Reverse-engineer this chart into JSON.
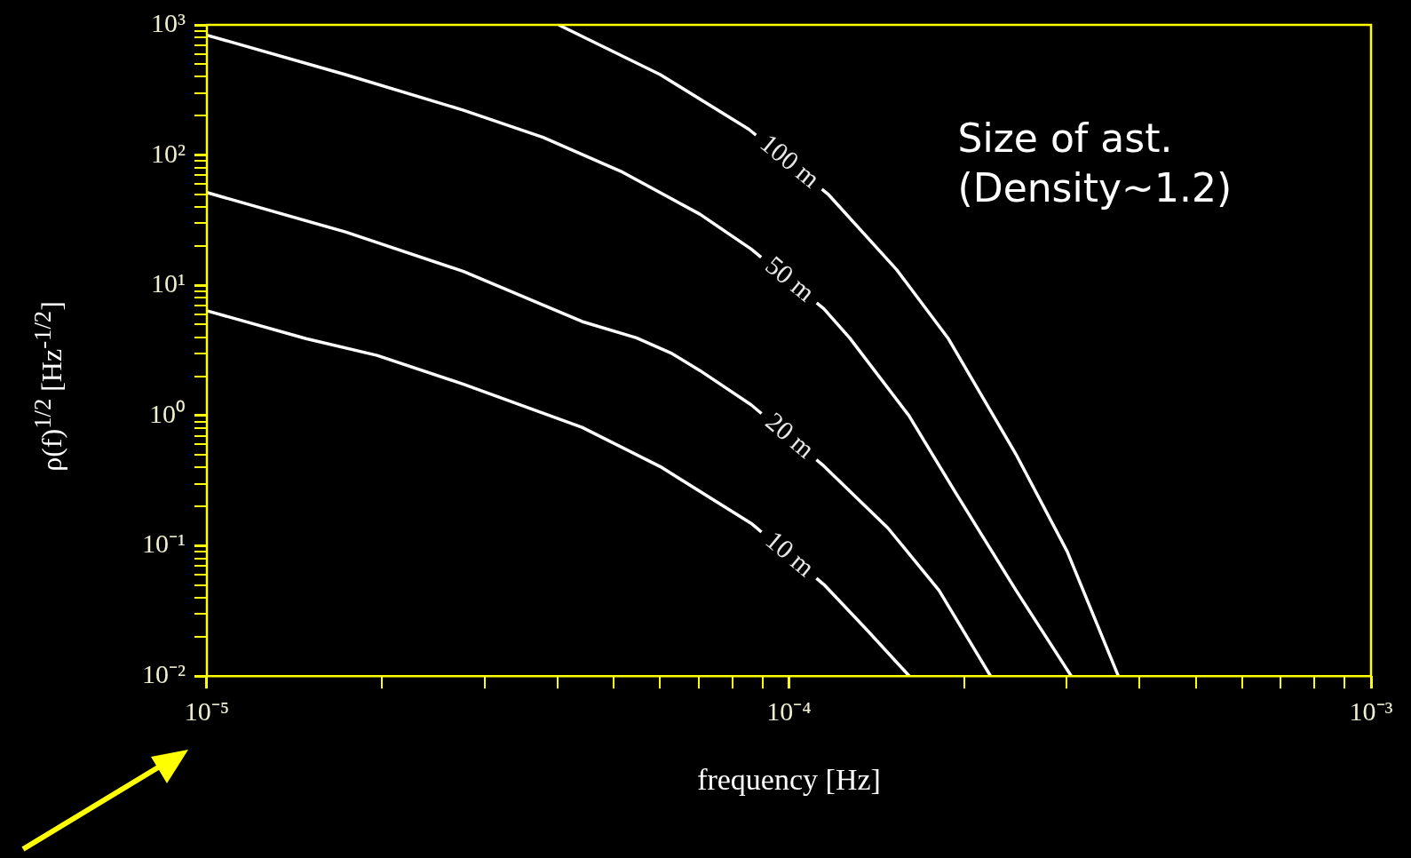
{
  "chart_data": {
    "type": "line",
    "xlabel": "frequency [Hz]",
    "ylabel": "ρ(f)$^{1/2}$ [Hz$^{-1/2}$]",
    "annotations": [
      "Size of ast.",
      "(Density~1.2)"
    ],
    "log": "xy",
    "grid": false,
    "legend": false,
    "marker": "none",
    "xlim": [
      1e-05,
      0.001
    ],
    "xticks": [
      {
        "value": 1e-05,
        "label": "10⁻⁵"
      },
      {
        "value": 2e-05,
        "label": null
      },
      {
        "value": 3e-05,
        "label": null
      },
      {
        "value": 4e-05,
        "label": null
      },
      {
        "value": 5e-05,
        "label": null
      },
      {
        "value": 6e-05,
        "label": null
      },
      {
        "value": 7e-05,
        "label": null
      },
      {
        "value": 8e-05,
        "label": null
      },
      {
        "value": 9e-05,
        "label": null
      },
      {
        "value": 0.0001,
        "label": "10⁻⁴"
      },
      {
        "value": 0.0002,
        "label": null
      },
      {
        "value": 0.0003,
        "label": null
      },
      {
        "value": 0.0004,
        "label": null
      },
      {
        "value": 0.0005,
        "label": null
      },
      {
        "value": 0.0006,
        "label": null
      },
      {
        "value": 0.0007,
        "label": null
      },
      {
        "value": 0.0008,
        "label": null
      },
      {
        "value": 0.0009,
        "label": null
      },
      {
        "value": 0.001,
        "label": "10⁻³"
      }
    ],
    "ylim": [
      0.01,
      1000
    ],
    "yticks": [
      {
        "value": 0.01,
        "label": "10⁻²"
      },
      {
        "value": 0.02,
        "label": null
      },
      {
        "value": 0.03,
        "label": null
      },
      {
        "value": 0.04,
        "label": null
      },
      {
        "value": 0.05,
        "label": null
      },
      {
        "value": 0.06,
        "label": null
      },
      {
        "value": 0.07,
        "label": null
      },
      {
        "value": 0.08,
        "label": null
      },
      {
        "value": 0.09,
        "label": null
      },
      {
        "value": 0.1,
        "label": "10⁻¹"
      },
      {
        "value": 0.2,
        "label": null
      },
      {
        "value": 0.3,
        "label": null
      },
      {
        "value": 0.4,
        "label": null
      },
      {
        "value": 0.5,
        "label": null
      },
      {
        "value": 0.6,
        "label": null
      },
      {
        "value": 0.7,
        "label": null
      },
      {
        "value": 0.8,
        "label": null
      },
      {
        "value": 0.9,
        "label": null
      },
      {
        "value": 1,
        "label": "10⁰"
      },
      {
        "value": 2,
        "label": null
      },
      {
        "value": 3,
        "label": null
      },
      {
        "value": 4,
        "label": null
      },
      {
        "value": 5,
        "label": null
      },
      {
        "value": 6,
        "label": null
      },
      {
        "value": 7,
        "label": null
      },
      {
        "value": 8,
        "label": null
      },
      {
        "value": 9,
        "label": null
      },
      {
        "value": 10,
        "label": "10¹"
      },
      {
        "value": 20,
        "label": null
      },
      {
        "value": 30,
        "label": null
      },
      {
        "value": 40,
        "label": null
      },
      {
        "value": 50,
        "label": null
      },
      {
        "value": 60,
        "label": null
      },
      {
        "value": 70,
        "label": null
      },
      {
        "value": 80,
        "label": null
      },
      {
        "value": 90,
        "label": null
      },
      {
        "value": 100,
        "label": "10²"
      },
      {
        "value": 200,
        "label": null
      },
      {
        "value": 300,
        "label": null
      },
      {
        "value": 400,
        "label": null
      },
      {
        "value": 500,
        "label": null
      },
      {
        "value": 600,
        "label": null
      },
      {
        "value": 700,
        "label": null
      },
      {
        "value": 800,
        "label": null
      },
      {
        "value": 900,
        "label": null
      },
      {
        "value": 1000,
        "label": "10³"
      }
    ],
    "series": [
      {
        "name": "100 m",
        "color": "#ffffff",
        "x": [
          4.02e-05,
          6.01e-05,
          8.53e-05,
          0.0001167,
          0.0001531,
          0.0001875,
          0.0002455,
          0.0003006,
          0.000368
        ],
        "values": [
          1000,
          415,
          158,
          50.2,
          13.2,
          3.95,
          0.504,
          0.0906,
          0.01
        ]
      },
      {
        "name": "50 m",
        "color": "#ffffff",
        "x": [
          1e-05,
          1.73e-05,
          2.76e-05,
          3.78e-05,
          5.14e-05,
          7.03e-05,
          8.61e-05,
          0.0001148,
          0.0001271,
          0.0001607,
          0.0001936,
          0.0002455,
          0.0003055
        ],
        "values": [
          834,
          415,
          221,
          137,
          75.2,
          35.2,
          19,
          6.62,
          3.95,
          1,
          0.253,
          0.0456,
          0.01
        ]
      },
      {
        "name": "20 m",
        "color": "#ffffff",
        "x": [
          1e-05,
          1.73e-05,
          2.76e-05,
          4.41e-05,
          5.47e-05,
          6.3e-05,
          7.03e-05,
          8.61e-05,
          0.0001148,
          0.0001479,
          0.000181,
          0.000222
        ],
        "values": [
          51.6,
          25.7,
          12.8,
          5.28,
          3.95,
          2.99,
          2.22,
          1.21,
          0.41,
          0.137,
          0.0456,
          0.01
        ]
      },
      {
        "name": "10 m",
        "color": "#ffffff",
        "x": [
          1e-05,
          1.48e-05,
          1.96e-05,
          2.76e-05,
          4.41e-05,
          6.01e-05,
          8.61e-05,
          0.0001148,
          0.0001358,
          0.000161
        ],
        "values": [
          6.38,
          3.9,
          2.9,
          1.74,
          0.813,
          0.406,
          0.149,
          0.0505,
          0.0229,
          0.01
        ]
      }
    ]
  }
}
